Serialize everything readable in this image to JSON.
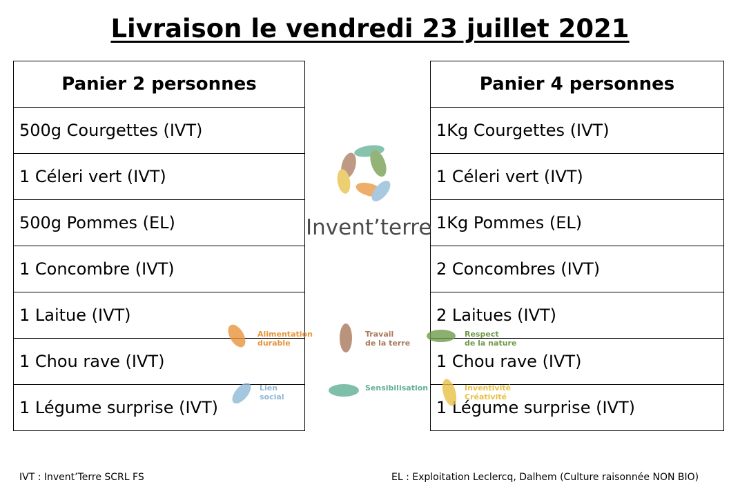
{
  "title": "Livraison le vendredi 23 juillet 2021",
  "basket_2": {
    "header": "Panier 2 personnes",
    "items": [
      "500g Courgettes (IVT)",
      "1 Céleri vert (IVT)",
      "500g Pommes (EL)",
      "1 Concombre (IVT)",
      "1 Laitue (IVT)",
      "1 Chou rave (IVT)",
      "1 Légume surprise (IVT)"
    ]
  },
  "basket_4": {
    "header": "Panier 4 personnes",
    "items": [
      "1Kg Courgettes (IVT)",
      "1 Céleri vert (IVT)",
      "1Kg Pommes (EL)",
      "2 Concombres (IVT)",
      "2 Laitues (IVT)",
      "1 Chou rave (IVT)",
      "1 Légume surprise (IVT)"
    ]
  },
  "logo": {
    "name": "Invent’terre",
    "values": [
      {
        "label": "Alimentation\ndurable",
        "color": "#e8943a",
        "icon": "leaf-icon"
      },
      {
        "label": "Travail\nde la terre",
        "color": "#a9785c",
        "icon": "leaf-icon"
      },
      {
        "label": "Respect\nde la nature",
        "color": "#6f9a4a",
        "icon": "leaf-icon"
      },
      {
        "label": "Lien\nsocial",
        "color": "#8db8d6",
        "icon": "leaf-icon"
      },
      {
        "label": "Sensibilisation",
        "color": "#5fae92",
        "icon": "leaf-icon"
      },
      {
        "label": "Inventivité\nCréativité",
        "color": "#e8c045",
        "icon": "leaf-icon"
      }
    ]
  },
  "footnotes": {
    "ivt": "IVT : Invent’Terre SCRL FS",
    "el": "EL : Exploitation Leclercq, Dalhem (Culture raisonnée NON BIO)"
  }
}
